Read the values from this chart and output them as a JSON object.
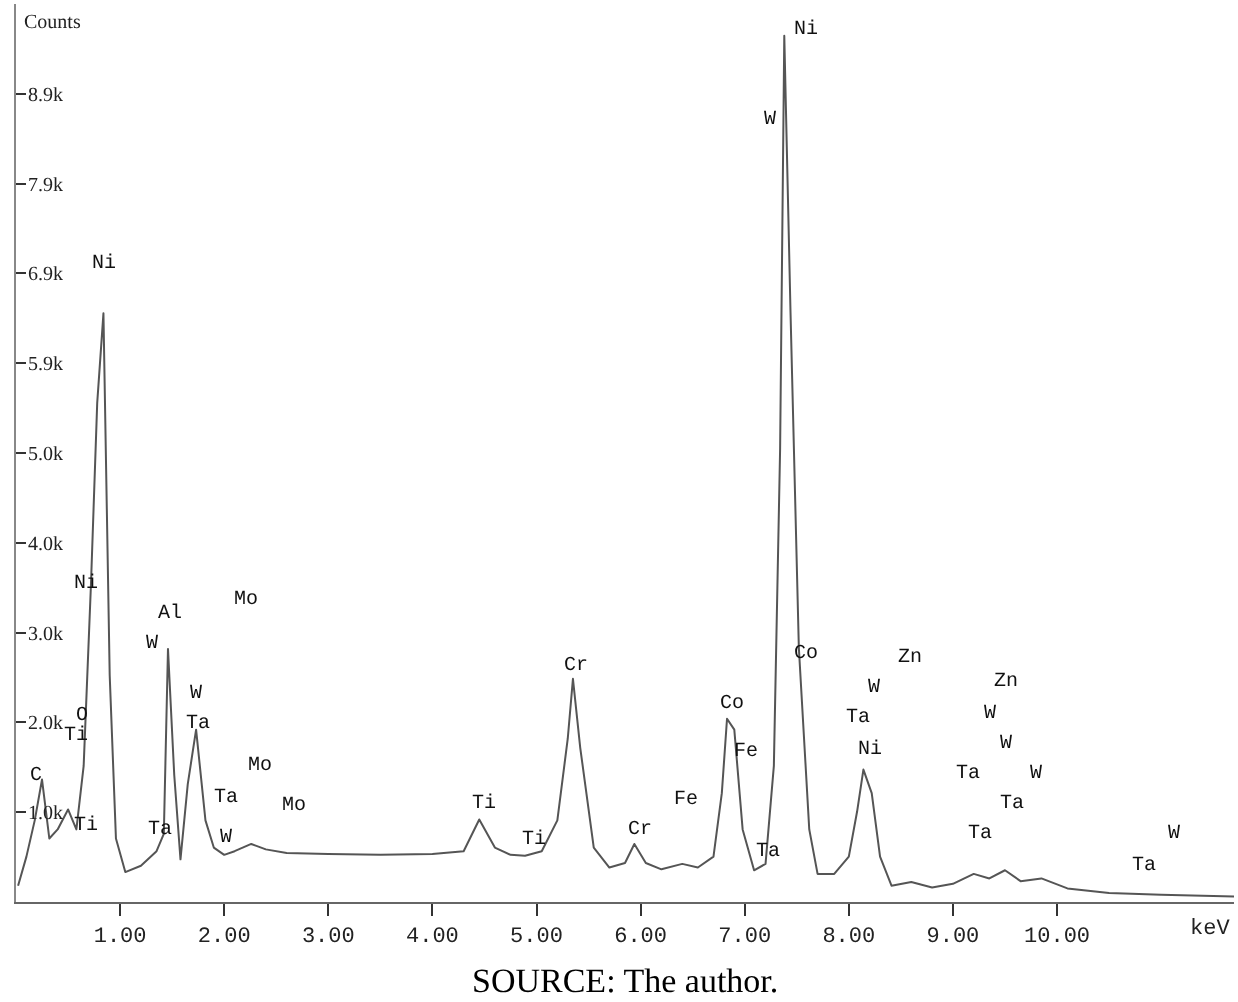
{
  "chart_data": {
    "type": "line",
    "xlabel": "keV",
    "ylabel": "Counts",
    "x": [
      0.02,
      0.1,
      0.18,
      0.25,
      0.32,
      0.4,
      0.5,
      0.58,
      0.65,
      0.72,
      0.78,
      0.84,
      0.9,
      0.96,
      1.05,
      1.2,
      1.35,
      1.42,
      1.46,
      1.52,
      1.58,
      1.65,
      1.73,
      1.82,
      1.9,
      2.0,
      2.1,
      2.26,
      2.4,
      2.6,
      3.0,
      3.5,
      4.0,
      4.3,
      4.45,
      4.6,
      4.75,
      4.89,
      5.05,
      5.2,
      5.3,
      5.35,
      5.42,
      5.55,
      5.7,
      5.85,
      5.94,
      6.05,
      6.2,
      6.4,
      6.55,
      6.7,
      6.78,
      6.83,
      6.9,
      6.98,
      7.09,
      7.2,
      7.28,
      7.34,
      7.38,
      7.44,
      7.52,
      7.62,
      7.7,
      7.86,
      8.0,
      8.08,
      8.14,
      8.22,
      8.3,
      8.41,
      8.6,
      8.8,
      9.0,
      9.2,
      9.35,
      9.5,
      9.65,
      9.85,
      10.1,
      10.5,
      11.0,
      11.7
    ],
    "values": [
      180,
      500,
      900,
      1350,
      700,
      800,
      1020,
      800,
      1500,
      3500,
      5500,
      6490,
      2500,
      700,
      330,
      400,
      560,
      750,
      2790,
      1400,
      470,
      1300,
      1900,
      900,
      600,
      520,
      560,
      640,
      580,
      540,
      530,
      520,
      530,
      560,
      910,
      600,
      520,
      510,
      560,
      900,
      1800,
      2460,
      1700,
      600,
      380,
      430,
      640,
      430,
      360,
      420,
      380,
      500,
      1200,
      2020,
      1900,
      800,
      350,
      420,
      1500,
      5000,
      9550,
      6500,
      2800,
      800,
      310,
      310,
      500,
      1000,
      1460,
      1200,
      500,
      180,
      220,
      160,
      200,
      310,
      260,
      350,
      230,
      260,
      150,
      100,
      80,
      60
    ],
    "color": "#555555",
    "xlim": [
      0,
      11.7
    ],
    "xticks": [
      {
        "value": 1,
        "label": "1.00"
      },
      {
        "value": 2,
        "label": "2.00"
      },
      {
        "value": 3,
        "label": "3.00"
      },
      {
        "value": 4,
        "label": "4.00"
      },
      {
        "value": 5,
        "label": "5.00"
      },
      {
        "value": 6,
        "label": "6.00"
      },
      {
        "value": 7,
        "label": "7.00"
      },
      {
        "value": 8,
        "label": "8.00"
      },
      {
        "value": 9,
        "label": "9.00"
      },
      {
        "value": 10,
        "label": "10.00"
      }
    ],
    "ylim": [
      0,
      9900
    ],
    "yticks": [
      {
        "value": 990,
        "label": "1.0k"
      },
      {
        "value": 1980,
        "label": "2.0k"
      },
      {
        "value": 2970,
        "label": "3.0k"
      },
      {
        "value": 3960,
        "label": "4.0k"
      },
      {
        "value": 4950,
        "label": "5.0k"
      },
      {
        "value": 5940,
        "label": "5.9k"
      },
      {
        "value": 6930,
        "label": "6.9k"
      },
      {
        "value": 7920,
        "label": "7.9k"
      },
      {
        "value": 8910,
        "label": "8.9k"
      }
    ],
    "legend": false,
    "marker": "none",
    "line_style": "solid",
    "annotations": [
      "C",
      "Ti",
      "O",
      "Ti",
      "Ni",
      "Ni",
      "Al",
      "W",
      "Mo",
      "W",
      "Ta",
      "Ta",
      "Ta",
      "W",
      "Mo",
      "Mo",
      "Ti",
      "Ti",
      "Cr",
      "Cr",
      "Fe",
      "Ta",
      "Ni",
      "W",
      "Co",
      "Zn",
      "W",
      "Co",
      "Ta",
      "Fe",
      "Ni",
      "Zn",
      "W",
      "W",
      "Ta",
      "W",
      "Ta",
      "Ta",
      "W",
      "Ta",
      "SOURCE: The author."
    ]
  }
}
